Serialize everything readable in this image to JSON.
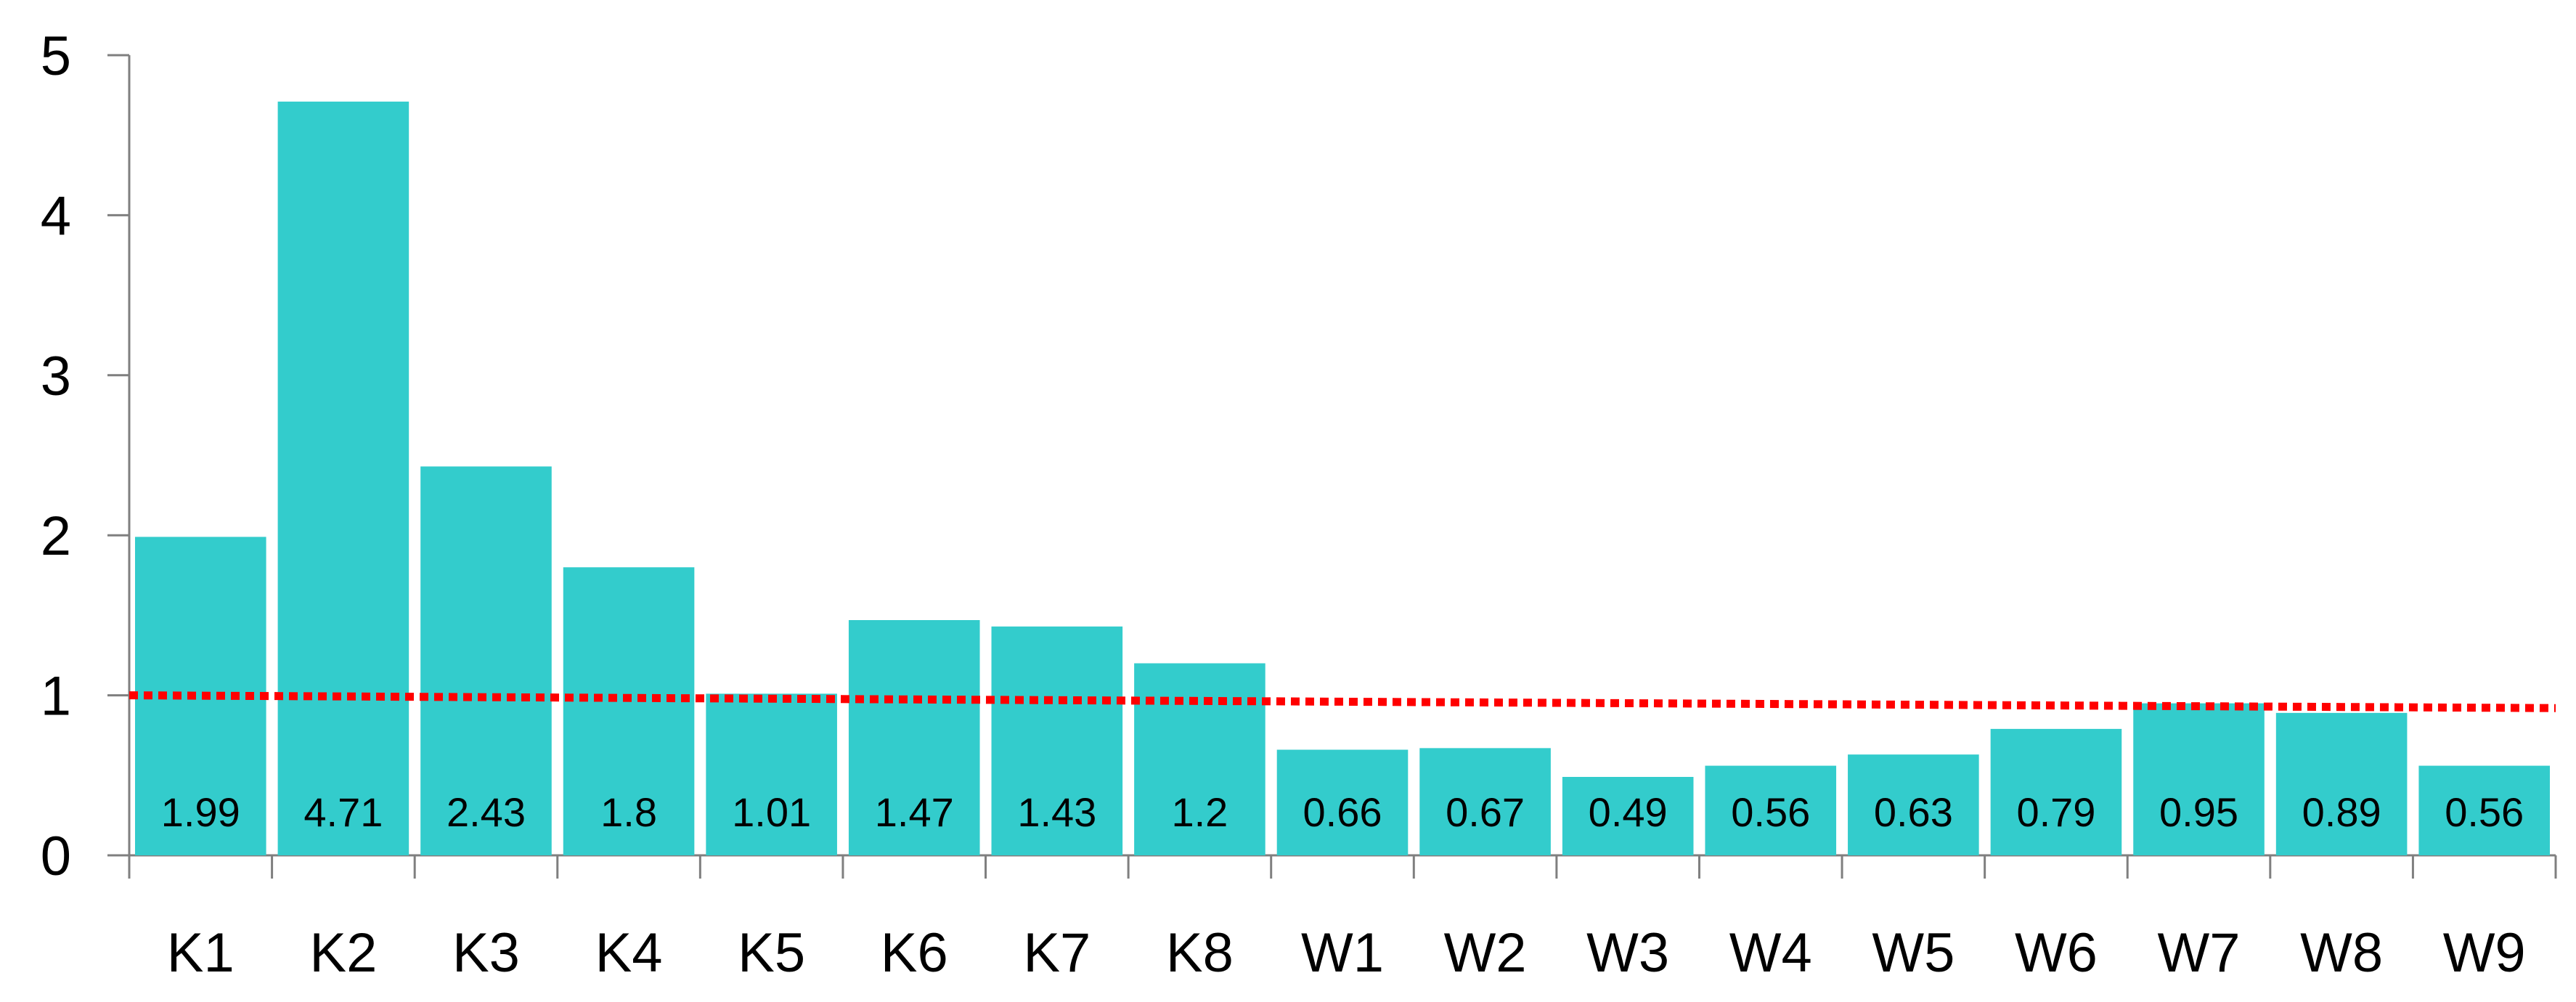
{
  "chart_data": {
    "type": "bar",
    "categories": [
      "K1",
      "K2",
      "K3",
      "K4",
      "K5",
      "K6",
      "K7",
      "K8",
      "W1",
      "W2",
      "W3",
      "W4",
      "W5",
      "W6",
      "W7",
      "W8",
      "W9"
    ],
    "values": [
      1.99,
      4.71,
      2.43,
      1.8,
      1.01,
      1.47,
      1.43,
      1.2,
      0.66,
      0.67,
      0.49,
      0.56,
      0.63,
      0.79,
      0.95,
      0.89,
      0.56
    ],
    "data_labels": [
      "1.99",
      "4.71",
      "2.43",
      "1.8",
      "1.01",
      "1.47",
      "1.43",
      "1.2",
      "0.66",
      "0.67",
      "0.49",
      "0.56",
      "0.63",
      "0.79",
      "0.95",
      "0.89",
      "0.56"
    ],
    "ylim": [
      0,
      5
    ],
    "yticks": [
      0,
      1,
      2,
      3,
      4,
      5
    ],
    "ytick_labels": [
      "0",
      "1",
      "2",
      "3",
      "4",
      "5"
    ],
    "title": "",
    "xlabel": "",
    "ylabel": "",
    "grid": false,
    "legend": "none",
    "bar_color": "#33CCCC",
    "reference_line": {
      "type": "dotted-trend",
      "color": "#FF0000",
      "start_value": 1.0,
      "end_value": 0.92
    }
  }
}
